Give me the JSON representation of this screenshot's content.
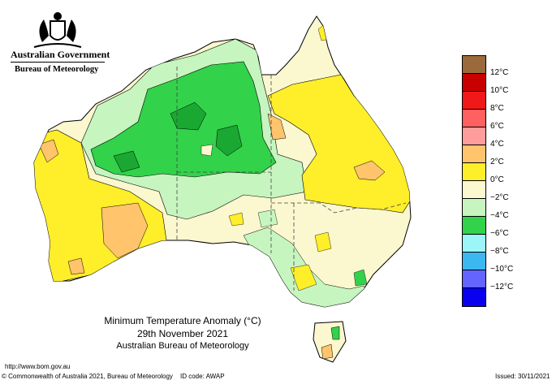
{
  "header": {
    "government": "Australian Government",
    "bureau": "Bureau of Meteorology"
  },
  "map": {
    "title": "Minimum Temperature Anomaly (°C)",
    "date": "29th November 2021",
    "source": "Australian Bureau of Meteorology"
  },
  "legend": [
    {
      "label": "12°C",
      "color": "#9a6a3c"
    },
    {
      "label": "10°C",
      "color": "#c80000"
    },
    {
      "label": "8°C",
      "color": "#f01818"
    },
    {
      "label": "6°C",
      "color": "#ff6060"
    },
    {
      "label": "4°C",
      "color": "#ff9c9c"
    },
    {
      "label": "2°C",
      "color": "#ffc46c"
    },
    {
      "label": "0°C",
      "color": "#ffee2a"
    },
    {
      "label": "−2°C",
      "color": "#fbf7cf"
    },
    {
      "label": "−4°C",
      "color": "#c6f5c0"
    },
    {
      "label": "−6°C",
      "color": "#32d24a"
    },
    {
      "label": "−8°C",
      "color": "#9cf6f8"
    },
    {
      "label": "−10°C",
      "color": "#3cb8f0"
    },
    {
      "label": "−12°C",
      "color": "#6464ff"
    },
    {
      "label": "",
      "color": "#0a00f0"
    }
  ],
  "footer": {
    "url": "http://www.bom.gov.au",
    "copyright": "© Commonwealth of Australia 2021, Bureau of Meteorology",
    "id_code": "ID code: AWAP",
    "issued": "Issued: 30/11/2021"
  }
}
